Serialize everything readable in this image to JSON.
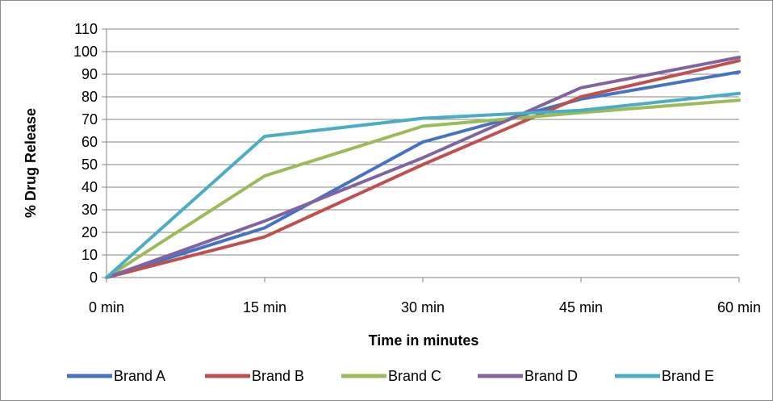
{
  "chart_data": {
    "type": "line",
    "title": "",
    "xlabel": "Time in minutes",
    "ylabel": "% Drug Release",
    "categories": [
      "0 min",
      "15 min",
      "30 min",
      "45 min",
      "60 min"
    ],
    "ylim": [
      0,
      110
    ],
    "yticks": [
      0,
      10,
      20,
      30,
      40,
      50,
      60,
      70,
      80,
      90,
      100,
      110
    ],
    "grid": true,
    "legend_position": "bottom",
    "series": [
      {
        "name": "Brand A",
        "color": "#4472C4",
        "values": [
          0,
          22,
          60,
          79,
          91
        ]
      },
      {
        "name": "Brand B",
        "color": "#C0504D",
        "values": [
          0,
          18,
          50,
          80,
          96
        ]
      },
      {
        "name": "Brand C",
        "color": "#9BBB59",
        "values": [
          0,
          45,
          67,
          73,
          78.5
        ]
      },
      {
        "name": "Brand D",
        "color": "#8064A2",
        "values": [
          0,
          25,
          53,
          84,
          97.5
        ]
      },
      {
        "name": "Brand E",
        "color": "#4BACC6",
        "values": [
          0,
          62.5,
          70.5,
          74,
          81.5
        ]
      }
    ]
  }
}
